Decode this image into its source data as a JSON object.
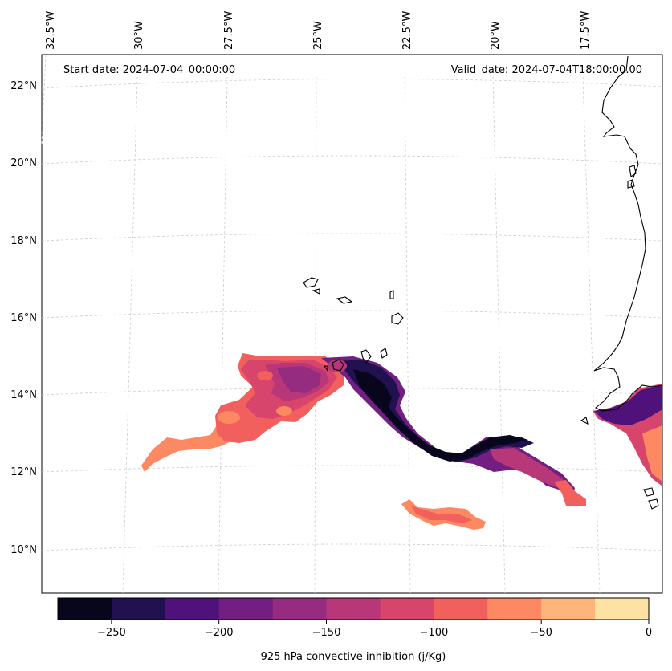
{
  "header": {
    "start_date": "Start date: 2024-07-04_00:00:00",
    "valid_date": "Valid_date: 2024-07-04T18:00:00.00"
  },
  "longitude_labels": [
    "32.5°W",
    "30°W",
    "27.5°W",
    "25°W",
    "22.5°W",
    "20°W",
    "17.5°W"
  ],
  "latitude_labels": [
    "22°N",
    "20°N",
    "18°N",
    "16°N",
    "14°N",
    "12°N",
    "10°N"
  ],
  "colorbar": {
    "label": "925 hPa convective inhibition (j/Kg)",
    "ticks": [
      "−250",
      "−200",
      "−150",
      "−100",
      "−50",
      "0"
    ],
    "levels": [
      -275,
      -250,
      -225,
      -200,
      -175,
      -150,
      -125,
      -100,
      -75,
      -50,
      -25,
      0
    ],
    "colors": [
      "#07061c",
      "#221150",
      "#4f127b",
      "#721f81",
      "#952c80",
      "#b73779",
      "#d8456c",
      "#f1605d",
      "#fc8961",
      "#feb57c",
      "#fde2a3"
    ]
  },
  "colors": {
    "coastline": "#000000",
    "gridline": "#cccccc"
  }
}
